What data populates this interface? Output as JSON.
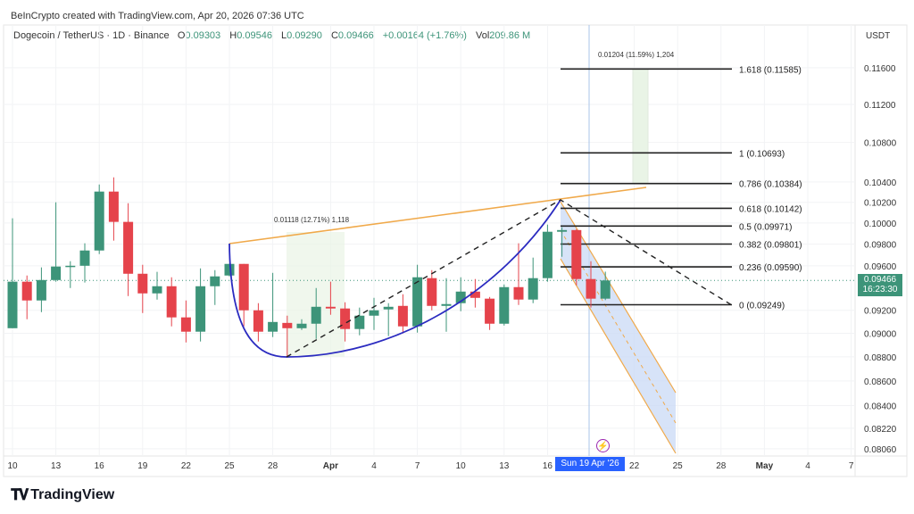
{
  "header": {
    "credit": "BeInCrypto created with TradingView.com, Apr 20, 2026 07:36 UTC",
    "symbol": "Dogecoin / TetherUS · 1D · Binance",
    "open_label": "O",
    "open": "0.09303",
    "high_label": "H",
    "high": "0.09546",
    "low_label": "L",
    "low": "0.09290",
    "close_label": "C",
    "close": "0.09466",
    "change": "+0.00164 (+1.76%)",
    "vol_label": "Vol",
    "vol": "209.86 M"
  },
  "currency": "USDT",
  "crosshair_date": "Sun 19 Apr '26",
  "current_price": {
    "price": "0.09466",
    "countdown": "16:23:30"
  },
  "event_icon": "lightning-icon",
  "brand": {
    "logo_text": "TradingView",
    "logo_mark": "TV"
  },
  "colors": {
    "up": "#3d9479",
    "down": "#e5434b",
    "trend": "#f0a94a",
    "cup": "#2b2bc0",
    "accent": "#2962ff"
  },
  "chart_data": {
    "type": "candlestick",
    "title": "Dogecoin / TetherUS 1D",
    "scale": "log",
    "ylim": [
      0.08,
      0.118
    ],
    "y_ticks": [
      "0.11600",
      "0.11200",
      "0.10800",
      "0.10400",
      "0.10200",
      "0.10000",
      "0.09800",
      "0.09600",
      "0.09200",
      "0.09000",
      "0.08800",
      "0.08600",
      "0.08400",
      "0.08220",
      "0.08060"
    ],
    "x_ticks": [
      {
        "day": 0,
        "label": "10"
      },
      {
        "day": 3,
        "label": "13"
      },
      {
        "day": 6,
        "label": "16"
      },
      {
        "day": 9,
        "label": "19"
      },
      {
        "day": 12,
        "label": "22"
      },
      {
        "day": 15,
        "label": "25"
      },
      {
        "day": 18,
        "label": "28"
      },
      {
        "day": 22,
        "label": "Apr",
        "bold": true
      },
      {
        "day": 25,
        "label": "4"
      },
      {
        "day": 28,
        "label": "7"
      },
      {
        "day": 31,
        "label": "10"
      },
      {
        "day": 34,
        "label": "13"
      },
      {
        "day": 37,
        "label": "16"
      },
      {
        "day": 43,
        "label": "22"
      },
      {
        "day": 46,
        "label": "25"
      },
      {
        "day": 49,
        "label": "28"
      },
      {
        "day": 52,
        "label": "May",
        "bold": true
      },
      {
        "day": 55,
        "label": "4"
      },
      {
        "day": 58,
        "label": "7"
      }
    ],
    "candles_ohlc_from_mar10": [
      [
        0.09044,
        0.10045,
        0.09044,
        0.09455
      ],
      [
        0.09455,
        0.09511,
        0.09122,
        0.09287
      ],
      [
        0.09287,
        0.09585,
        0.09184,
        0.0947
      ],
      [
        0.0947,
        0.102,
        0.09455,
        0.09593
      ],
      [
        0.09593,
        0.09642,
        0.09398,
        0.096
      ],
      [
        0.096,
        0.09808,
        0.09447,
        0.09741
      ],
      [
        0.09741,
        0.10375,
        0.09708,
        0.10305
      ],
      [
        0.10305,
        0.10446,
        0.09833,
        0.10011
      ],
      [
        0.10011,
        0.10191,
        0.09326,
        0.09527
      ],
      [
        0.09527,
        0.09609,
        0.09176,
        0.0935
      ],
      [
        0.0935,
        0.09544,
        0.09295,
        0.09414
      ],
      [
        0.09414,
        0.09495,
        0.0906,
        0.09138
      ],
      [
        0.09138,
        0.09287,
        0.08922,
        0.09014
      ],
      [
        0.09014,
        0.09576,
        0.0893,
        0.09414
      ],
      [
        0.09414,
        0.0956,
        0.09247,
        0.09503
      ],
      [
        0.09511,
        0.09617,
        0.09503,
        0.09617
      ],
      [
        0.09617,
        0.09617,
        0.0906,
        0.092
      ],
      [
        0.092,
        0.09263,
        0.0893,
        0.09014
      ],
      [
        0.09014,
        0.09535,
        0.08968,
        0.09098
      ],
      [
        0.0909,
        0.09153,
        0.08801,
        0.09044
      ],
      [
        0.09044,
        0.09122,
        0.09029,
        0.09083
      ],
      [
        0.09083,
        0.09398,
        0.08952,
        0.09231
      ],
      [
        0.09231,
        0.09455,
        0.09161,
        0.09216
      ],
      [
        0.09216,
        0.09271,
        0.0893,
        0.09037
      ],
      [
        0.09037,
        0.09224,
        0.08983,
        0.09153
      ],
      [
        0.09153,
        0.0931,
        0.09029,
        0.092
      ],
      [
        0.09208,
        0.09263,
        0.08976,
        0.09231
      ],
      [
        0.09239,
        0.09342,
        0.08999,
        0.0906
      ],
      [
        0.0906,
        0.09609,
        0.09006,
        0.09495
      ],
      [
        0.09487,
        0.0956,
        0.092,
        0.09239
      ],
      [
        0.09239,
        0.09487,
        0.09014,
        0.09255
      ],
      [
        0.09263,
        0.09495,
        0.09192,
        0.09366
      ],
      [
        0.09366,
        0.09479,
        0.09224,
        0.0931
      ],
      [
        0.09303,
        0.09318,
        0.09029,
        0.09083
      ],
      [
        0.09083,
        0.0943,
        0.09067,
        0.09406
      ],
      [
        0.09406,
        0.09808,
        0.09247,
        0.09295
      ],
      [
        0.09295,
        0.09675,
        0.09263,
        0.09487
      ],
      [
        0.09487,
        0.09985,
        0.09455,
        0.09917
      ],
      [
        0.09917,
        0.09959,
        0.09683,
        0.09933
      ],
      [
        0.09933,
        0.09942,
        0.09422,
        0.09479
      ],
      [
        0.09479,
        0.09642,
        0.09224,
        0.09303
      ],
      [
        0.09303,
        0.09546,
        0.0929,
        0.09466
      ]
    ],
    "fib_levels": [
      {
        "label": "1.618 (0.11585)",
        "price": 0.11585
      },
      {
        "label": "1 (0.10693)",
        "price": 0.10693
      },
      {
        "label": "0.786 (0.10384)",
        "price": 0.10384
      },
      {
        "label": "0.618 (0.10142)",
        "price": 0.10142
      },
      {
        "label": "0.5 (0.09971)",
        "price": 0.09971
      },
      {
        "label": "0.382 (0.09801)",
        "price": 0.09801
      },
      {
        "label": "0.236 (0.09590)",
        "price": 0.0959
      },
      {
        "label": "0 (0.09249)",
        "price": 0.09249
      }
    ],
    "measurements": [
      {
        "label": "0.01118 (12.71%) 1,118"
      },
      {
        "label": "0.01204 (11.59%) 1,204"
      }
    ]
  }
}
